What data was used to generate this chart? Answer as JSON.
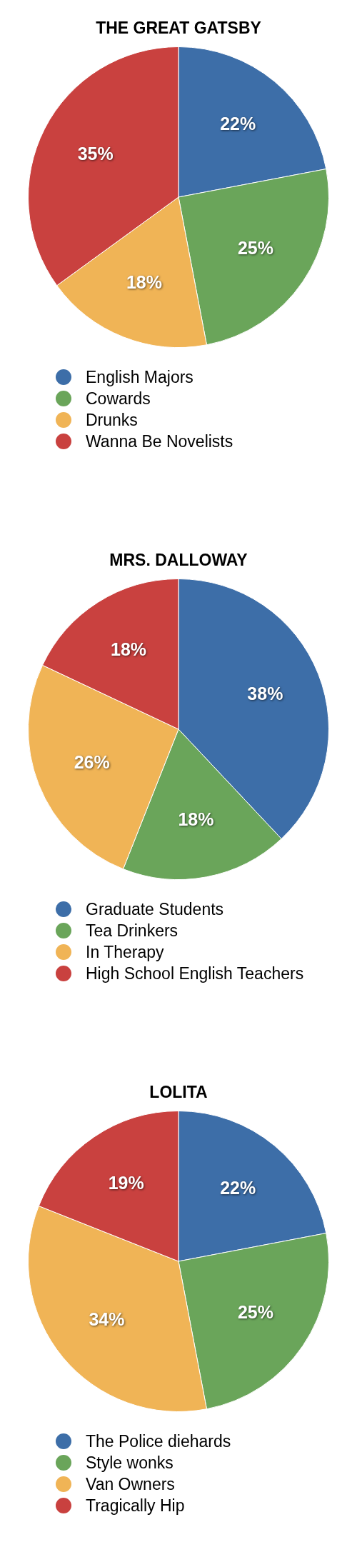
{
  "chart_data": [
    {
      "type": "pie",
      "title": "THE GREAT GATSBY",
      "categories": [
        "English Majors",
        "Cowards",
        "Drunks",
        "Wanna Be Novelists"
      ],
      "values": [
        22,
        25,
        18,
        35
      ],
      "value_labels": [
        "22%",
        "25%",
        "18%",
        "35%"
      ],
      "colors": [
        "#3d6ea8",
        "#6aa55a",
        "#f0b456",
        "#c9413f"
      ],
      "legend": "bottom"
    },
    {
      "type": "pie",
      "title": "MRS. DALLOWAY",
      "categories": [
        "Graduate Students",
        "Tea Drinkers",
        "In Therapy",
        "High School English Teachers"
      ],
      "values": [
        38,
        18,
        26,
        18
      ],
      "value_labels": [
        "38%",
        "18%",
        "26%",
        "18%"
      ],
      "colors": [
        "#3d6ea8",
        "#6aa55a",
        "#f0b456",
        "#c9413f"
      ],
      "legend": "bottom"
    },
    {
      "type": "pie",
      "title": "LOLITA",
      "categories": [
        "The Police diehards",
        "Style wonks",
        "Van Owners",
        "Tragically Hip"
      ],
      "values": [
        22,
        25,
        34,
        19
      ],
      "value_labels": [
        "22%",
        "25%",
        "34%",
        "19%"
      ],
      "colors": [
        "#3d6ea8",
        "#6aa55a",
        "#f0b456",
        "#c9413f"
      ],
      "legend": "bottom"
    }
  ]
}
